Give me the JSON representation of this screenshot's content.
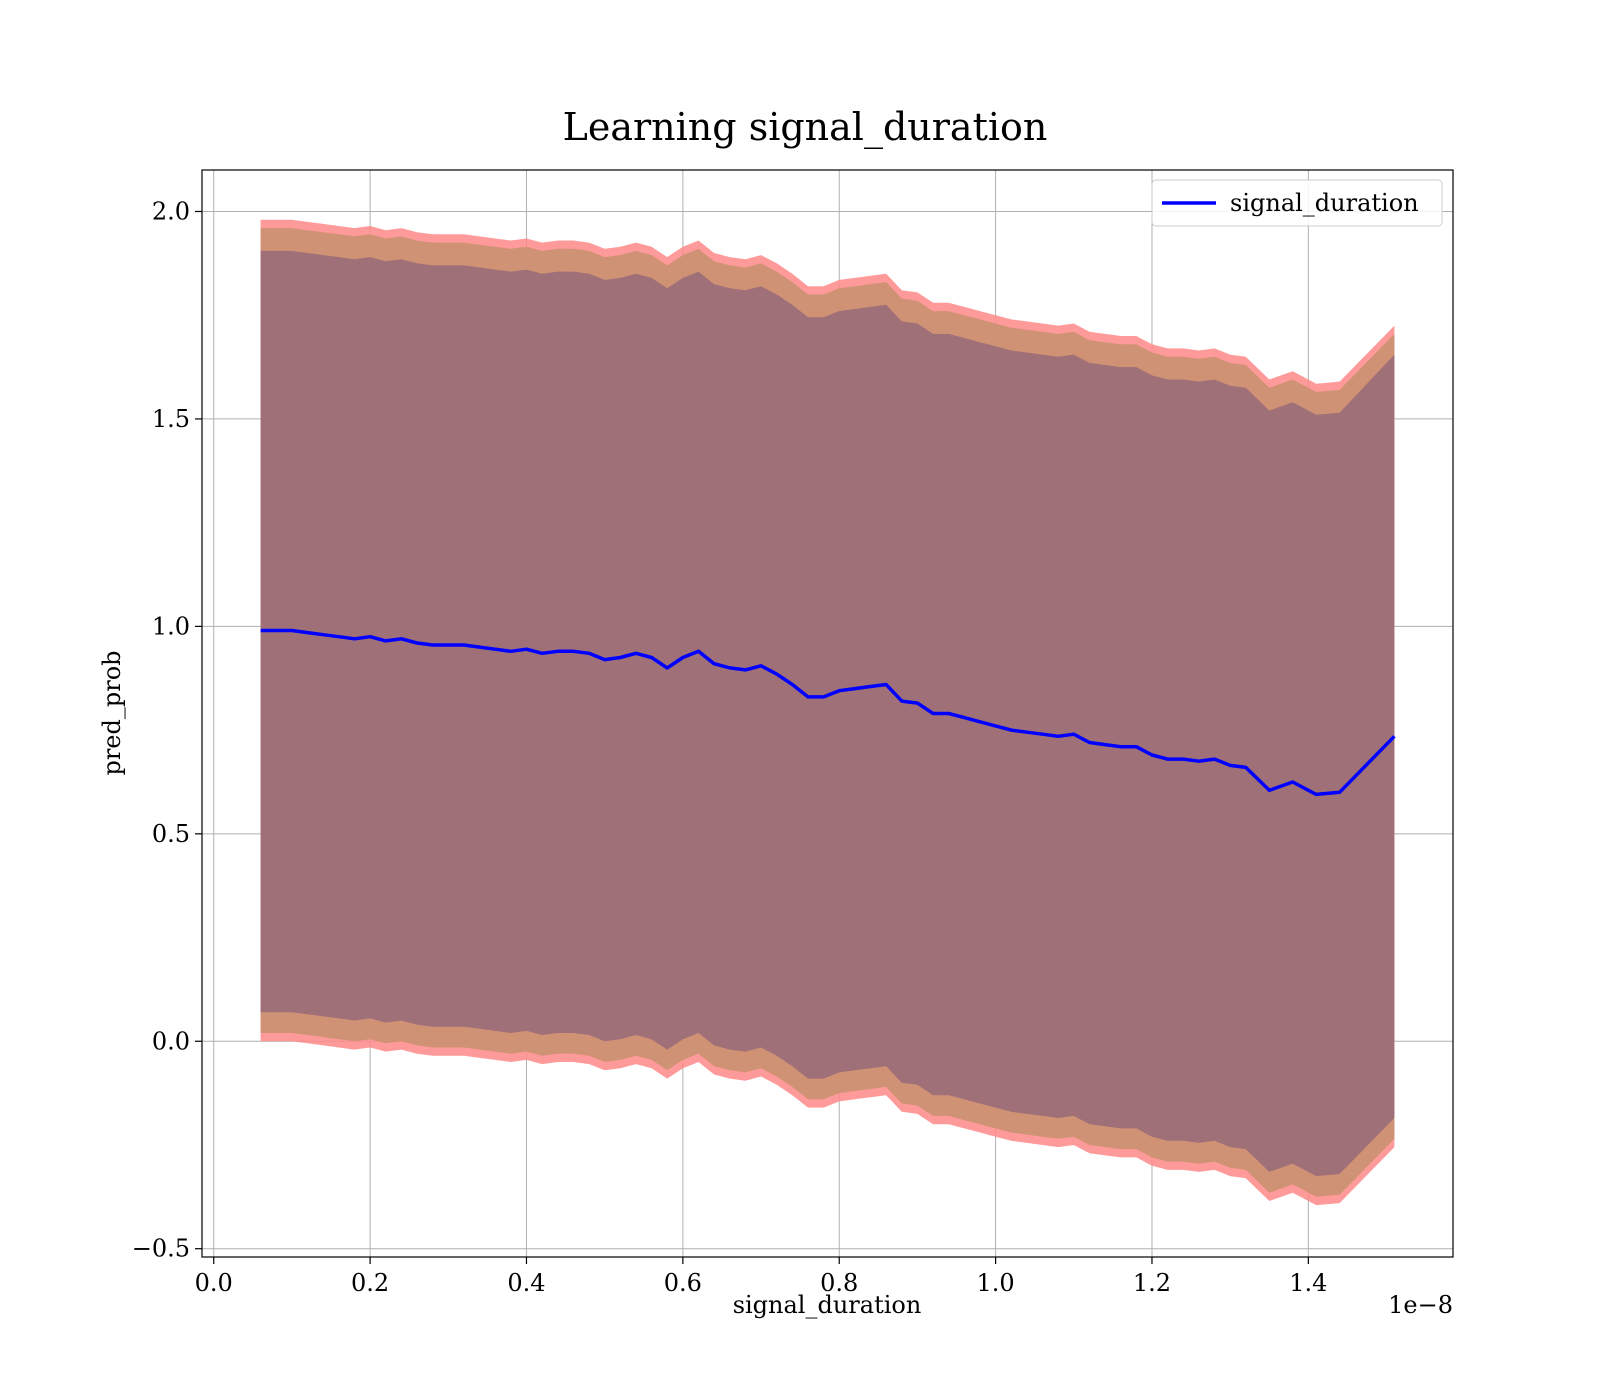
{
  "chart_data": {
    "type": "area",
    "title": "Learning signal_duration",
    "xlabel": "signal_duration",
    "ylabel": "pred_prob",
    "x_offset_label": "1e−8",
    "xlim": [
      -0.015,
      1.585
    ],
    "ylim": [
      -0.52,
      2.1
    ],
    "x_ticks": [
      0.0,
      0.2,
      0.4,
      0.6,
      0.8,
      1.0,
      1.2,
      1.4
    ],
    "x_tick_labels": [
      "0.0",
      "0.2",
      "0.4",
      "0.6",
      "0.8",
      "1.0",
      "1.2",
      "1.4"
    ],
    "y_ticks": [
      -0.5,
      0.0,
      0.5,
      1.0,
      1.5,
      2.0
    ],
    "y_tick_labels": [
      "−0.5",
      "0.0",
      "0.5",
      "1.0",
      "1.5",
      "2.0"
    ],
    "grid": true,
    "legend_position": "top-right",
    "series": [
      {
        "name": "signal_duration",
        "color": "#0000ff",
        "x": [
          0.06,
          0.08,
          0.1,
          0.12,
          0.14,
          0.16,
          0.18,
          0.2,
          0.22,
          0.24,
          0.26,
          0.28,
          0.3,
          0.32,
          0.34,
          0.36,
          0.38,
          0.4,
          0.42,
          0.44,
          0.46,
          0.48,
          0.5,
          0.52,
          0.54,
          0.56,
          0.58,
          0.6,
          0.62,
          0.64,
          0.66,
          0.68,
          0.7,
          0.72,
          0.74,
          0.76,
          0.78,
          0.8,
          0.82,
          0.84,
          0.86,
          0.88,
          0.9,
          0.92,
          0.94,
          0.96,
          0.98,
          1.0,
          1.02,
          1.04,
          1.06,
          1.08,
          1.1,
          1.12,
          1.14,
          1.16,
          1.18,
          1.2,
          1.22,
          1.24,
          1.26,
          1.28,
          1.3,
          1.32,
          1.35,
          1.38,
          1.41,
          1.44,
          1.51
        ],
        "values": [
          0.99,
          0.99,
          0.99,
          0.985,
          0.98,
          0.975,
          0.97,
          0.975,
          0.965,
          0.97,
          0.96,
          0.955,
          0.955,
          0.955,
          0.95,
          0.945,
          0.94,
          0.945,
          0.935,
          0.94,
          0.94,
          0.935,
          0.92,
          0.925,
          0.935,
          0.925,
          0.9,
          0.925,
          0.94,
          0.91,
          0.9,
          0.895,
          0.905,
          0.885,
          0.86,
          0.83,
          0.83,
          0.845,
          0.85,
          0.855,
          0.86,
          0.82,
          0.815,
          0.79,
          0.79,
          0.78,
          0.77,
          0.76,
          0.75,
          0.745,
          0.74,
          0.735,
          0.74,
          0.72,
          0.715,
          0.71,
          0.71,
          0.69,
          0.68,
          0.68,
          0.675,
          0.68,
          0.665,
          0.66,
          0.605,
          0.625,
          0.595,
          0.6,
          0.735
        ]
      }
    ],
    "bands": [
      {
        "color": "#ff8888",
        "upper": [
          1.98,
          1.98,
          1.98,
          1.975,
          1.97,
          1.965,
          1.96,
          1.965,
          1.955,
          1.96,
          1.95,
          1.945,
          1.945,
          1.945,
          1.94,
          1.935,
          1.93,
          1.935,
          1.925,
          1.93,
          1.93,
          1.925,
          1.91,
          1.915,
          1.925,
          1.915,
          1.89,
          1.915,
          1.93,
          1.9,
          1.89,
          1.885,
          1.895,
          1.875,
          1.85,
          1.82,
          1.82,
          1.835,
          1.84,
          1.845,
          1.85,
          1.81,
          1.805,
          1.78,
          1.78,
          1.77,
          1.76,
          1.75,
          1.74,
          1.735,
          1.73,
          1.725,
          1.73,
          1.71,
          1.705,
          1.7,
          1.7,
          1.68,
          1.67,
          1.67,
          1.665,
          1.67,
          1.655,
          1.65,
          1.595,
          1.615,
          1.585,
          1.59,
          1.725
        ],
        "lower": [
          0.0,
          0.0,
          0.0,
          -0.005,
          -0.01,
          -0.015,
          -0.02,
          -0.015,
          -0.025,
          -0.02,
          -0.03,
          -0.035,
          -0.035,
          -0.035,
          -0.04,
          -0.045,
          -0.05,
          -0.045,
          -0.055,
          -0.05,
          -0.05,
          -0.055,
          -0.07,
          -0.065,
          -0.055,
          -0.065,
          -0.09,
          -0.065,
          -0.05,
          -0.08,
          -0.09,
          -0.095,
          -0.085,
          -0.105,
          -0.13,
          -0.16,
          -0.16,
          -0.145,
          -0.14,
          -0.135,
          -0.13,
          -0.17,
          -0.175,
          -0.2,
          -0.2,
          -0.21,
          -0.22,
          -0.23,
          -0.24,
          -0.245,
          -0.25,
          -0.255,
          -0.25,
          -0.27,
          -0.275,
          -0.28,
          -0.28,
          -0.3,
          -0.31,
          -0.31,
          -0.315,
          -0.31,
          -0.325,
          -0.33,
          -0.385,
          -0.365,
          -0.395,
          -0.39,
          -0.255
        ]
      },
      {
        "color": "#c8906e",
        "upper": [
          1.96,
          1.96,
          1.96,
          1.955,
          1.95,
          1.945,
          1.94,
          1.945,
          1.935,
          1.94,
          1.93,
          1.925,
          1.925,
          1.925,
          1.92,
          1.915,
          1.91,
          1.915,
          1.905,
          1.91,
          1.91,
          1.905,
          1.89,
          1.895,
          1.905,
          1.895,
          1.87,
          1.895,
          1.91,
          1.88,
          1.87,
          1.865,
          1.875,
          1.855,
          1.83,
          1.8,
          1.8,
          1.815,
          1.82,
          1.825,
          1.83,
          1.79,
          1.785,
          1.76,
          1.76,
          1.75,
          1.74,
          1.73,
          1.72,
          1.715,
          1.71,
          1.705,
          1.71,
          1.69,
          1.685,
          1.68,
          1.68,
          1.66,
          1.65,
          1.65,
          1.645,
          1.65,
          1.635,
          1.63,
          1.575,
          1.595,
          1.565,
          1.57,
          1.705
        ],
        "lower": [
          0.02,
          0.02,
          0.02,
          0.015,
          0.01,
          0.005,
          0.0,
          0.005,
          -0.005,
          0.0,
          -0.01,
          -0.015,
          -0.015,
          -0.015,
          -0.02,
          -0.025,
          -0.03,
          -0.025,
          -0.035,
          -0.03,
          -0.03,
          -0.035,
          -0.05,
          -0.045,
          -0.035,
          -0.045,
          -0.07,
          -0.045,
          -0.03,
          -0.06,
          -0.07,
          -0.075,
          -0.065,
          -0.085,
          -0.11,
          -0.14,
          -0.14,
          -0.125,
          -0.12,
          -0.115,
          -0.11,
          -0.15,
          -0.155,
          -0.18,
          -0.18,
          -0.19,
          -0.2,
          -0.21,
          -0.22,
          -0.225,
          -0.23,
          -0.235,
          -0.23,
          -0.25,
          -0.255,
          -0.26,
          -0.26,
          -0.28,
          -0.29,
          -0.29,
          -0.295,
          -0.29,
          -0.305,
          -0.31,
          -0.365,
          -0.345,
          -0.375,
          -0.37,
          -0.235
        ]
      },
      {
        "color": "#a07078",
        "upper": [
          1.905,
          1.905,
          1.905,
          1.9,
          1.895,
          1.89,
          1.885,
          1.89,
          1.88,
          1.885,
          1.875,
          1.87,
          1.87,
          1.87,
          1.865,
          1.86,
          1.855,
          1.86,
          1.85,
          1.855,
          1.855,
          1.85,
          1.835,
          1.84,
          1.85,
          1.84,
          1.815,
          1.84,
          1.855,
          1.825,
          1.815,
          1.81,
          1.82,
          1.8,
          1.775,
          1.745,
          1.745,
          1.76,
          1.765,
          1.77,
          1.775,
          1.735,
          1.73,
          1.705,
          1.705,
          1.695,
          1.685,
          1.675,
          1.665,
          1.66,
          1.655,
          1.65,
          1.655,
          1.635,
          1.63,
          1.625,
          1.625,
          1.605,
          1.595,
          1.595,
          1.59,
          1.595,
          1.58,
          1.575,
          1.52,
          1.54,
          1.51,
          1.515,
          1.655
        ],
        "lower": [
          0.07,
          0.07,
          0.07,
          0.065,
          0.06,
          0.055,
          0.05,
          0.055,
          0.045,
          0.05,
          0.04,
          0.035,
          0.035,
          0.035,
          0.03,
          0.025,
          0.02,
          0.025,
          0.015,
          0.02,
          0.02,
          0.015,
          0.0,
          0.005,
          0.015,
          0.005,
          -0.02,
          0.005,
          0.02,
          -0.01,
          -0.02,
          -0.025,
          -0.015,
          -0.035,
          -0.06,
          -0.09,
          -0.09,
          -0.075,
          -0.07,
          -0.065,
          -0.06,
          -0.1,
          -0.105,
          -0.13,
          -0.13,
          -0.14,
          -0.15,
          -0.16,
          -0.17,
          -0.175,
          -0.18,
          -0.185,
          -0.18,
          -0.2,
          -0.205,
          -0.21,
          -0.21,
          -0.23,
          -0.24,
          -0.24,
          -0.245,
          -0.24,
          -0.255,
          -0.26,
          -0.315,
          -0.295,
          -0.325,
          -0.32,
          -0.185
        ]
      }
    ]
  }
}
